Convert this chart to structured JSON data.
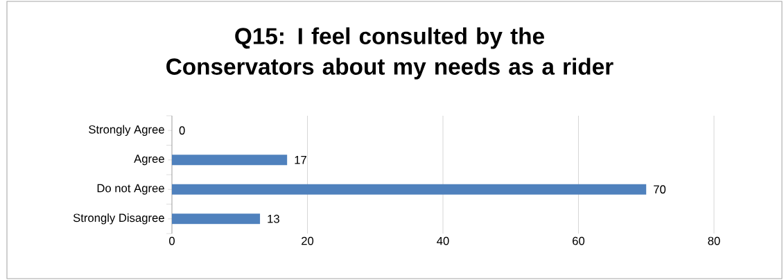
{
  "chart_data": {
    "type": "bar",
    "orientation": "horizontal",
    "title": "Q15: I feel consulted by the Conservators about my needs as a rider",
    "categories": [
      "Strongly Agree",
      "Agree",
      "Do not Agree",
      "Strongly Disagree"
    ],
    "values": [
      0,
      17,
      70,
      13
    ],
    "color": "#4f81bd",
    "data_labels": true,
    "xlim": [
      0,
      80
    ],
    "xticks": [
      0,
      20,
      40,
      60,
      80
    ],
    "grid": "x"
  }
}
